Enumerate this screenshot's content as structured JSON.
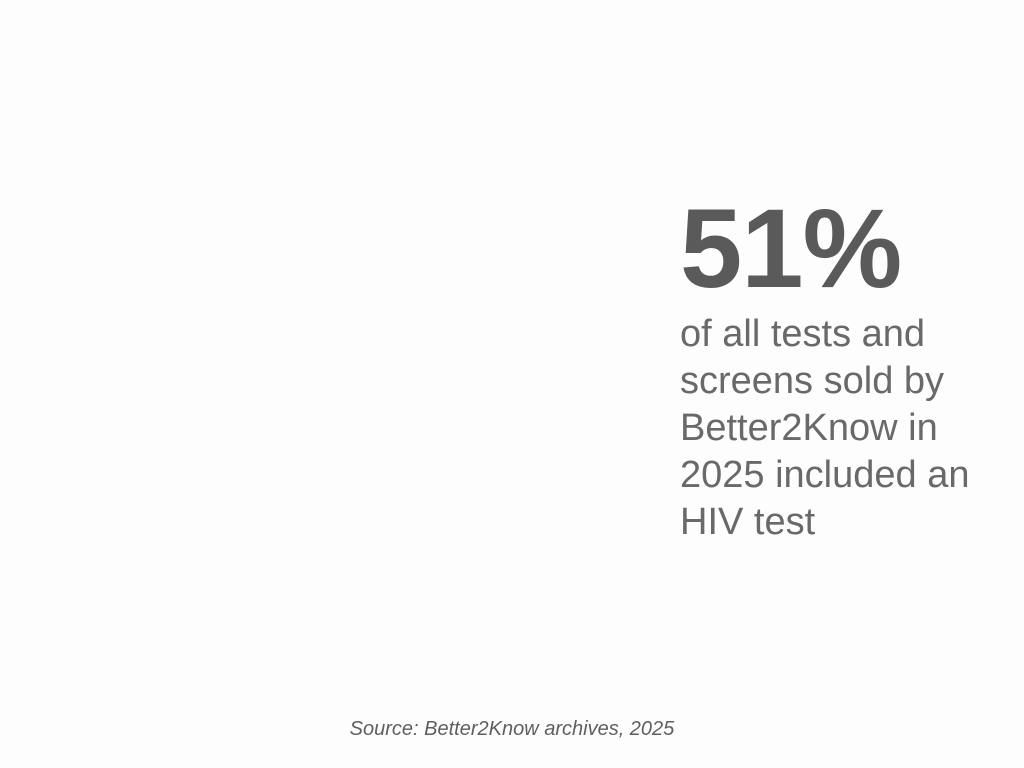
{
  "slide": {
    "stat": {
      "value": "51%",
      "description": "of all tests and screens sold by Better2Know in 2025 included an HIV test",
      "lines": [
        "of all tests and",
        "screens sold by",
        "Better2Know in",
        "2025 included an",
        "HIV test"
      ]
    },
    "source": "Source: Better2Know archives, 2025",
    "colors": {
      "background": "#fdfdfd",
      "stat_value": "#5a5a5a",
      "stat_description": "#696969",
      "source_text": "#5f5f5f"
    }
  }
}
